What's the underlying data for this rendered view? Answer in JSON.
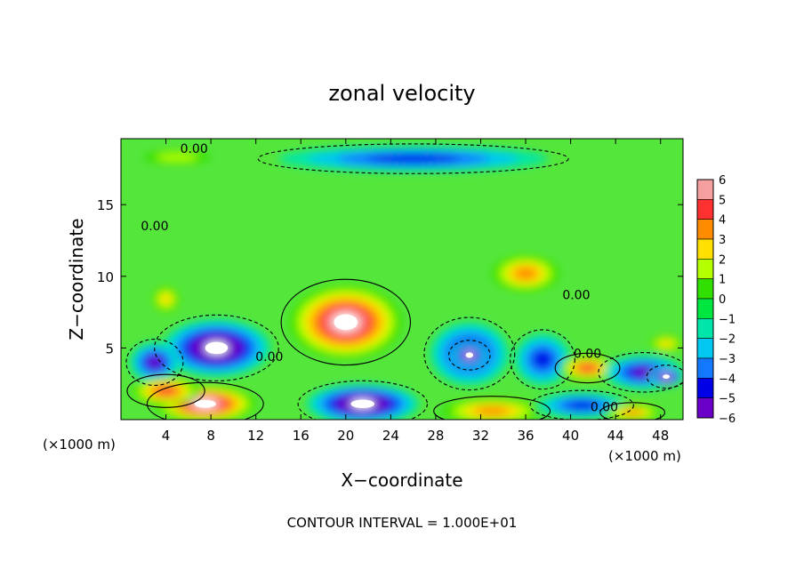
{
  "chart_data": {
    "type": "heatmap",
    "title": "zonal velocity",
    "xlabel": "X−coordinate",
    "ylabel": "Z−coordinate",
    "xunit": "(×1000 m)",
    "footer": "CONTOUR INTERVAL = 1.000E+01",
    "xlim": [
      0,
      50
    ],
    "ylim": [
      0,
      19.6
    ],
    "xticks": [
      4,
      8,
      12,
      16,
      20,
      24,
      28,
      32,
      36,
      40,
      44,
      48
    ],
    "yticks": [
      5,
      10,
      15
    ],
    "colorbar": {
      "range": [
        -6,
        6
      ],
      "ticks": [
        "6",
        "5",
        "4",
        "3",
        "2",
        "1",
        "0",
        "−1",
        "−2",
        "−3",
        "−4",
        "−5",
        "−6"
      ],
      "colors": [
        "#f4a0a0",
        "#ff3030",
        "#ff8c00",
        "#ffe000",
        "#b4ff00",
        "#32e000",
        "#00e640",
        "#00e6aa",
        "#00c8f0",
        "#1478ff",
        "#0000e6",
        "#6a00c8"
      ]
    },
    "contour_labels": [
      {
        "text": "0.00",
        "x": 6.5,
        "y": 18.6
      },
      {
        "text": "0.00",
        "x": 3.0,
        "y": 13.2
      },
      {
        "text": "0.00",
        "x": 40.5,
        "y": 8.4
      },
      {
        "text": "0.00",
        "x": 13.2,
        "y": 4.1
      },
      {
        "text": "0.00",
        "x": 41.5,
        "y": 4.3
      },
      {
        "text": "0.00",
        "x": 43.0,
        "y": 0.6
      }
    ],
    "features": [
      {
        "value": 6.5,
        "x": 20.0,
        "y": 6.8,
        "rx": 5.0,
        "ry": 2.6
      },
      {
        "value": 3.2,
        "x": 36.0,
        "y": 10.2,
        "rx": 3.0,
        "ry": 1.3
      },
      {
        "value": 2.2,
        "x": 4.0,
        "y": 8.4,
        "rx": 1.2,
        "ry": 0.9
      },
      {
        "value": 1.8,
        "x": 5.0,
        "y": 18.3,
        "rx": 3.0,
        "ry": 0.5
      },
      {
        "value": -4.0,
        "x": 26.0,
        "y": 18.2,
        "rx": 12.0,
        "ry": 0.9
      },
      {
        "value": -6.5,
        "x": 8.5,
        "y": 5.0,
        "rx": 4.8,
        "ry": 2.0
      },
      {
        "value": -5.0,
        "x": 3.0,
        "y": 4.0,
        "rx": 2.2,
        "ry": 1.4
      },
      {
        "value": 6.5,
        "x": 7.5,
        "y": 1.1,
        "rx": 4.5,
        "ry": 1.3
      },
      {
        "value": 5.0,
        "x": 4.0,
        "y": 2.0,
        "rx": 3.0,
        "ry": 1.0
      },
      {
        "value": -6.5,
        "x": 21.5,
        "y": 1.1,
        "rx": 5.0,
        "ry": 1.4
      },
      {
        "value": -4.5,
        "x": 31.0,
        "y": 4.6,
        "rx": 3.5,
        "ry": 2.2
      },
      {
        "value": -6.5,
        "x": 31.0,
        "y": 4.5,
        "rx": 1.6,
        "ry": 0.9
      },
      {
        "value": -4.0,
        "x": 37.5,
        "y": 4.2,
        "rx": 2.5,
        "ry": 1.8
      },
      {
        "value": 4.0,
        "x": 33.0,
        "y": 0.6,
        "rx": 4.5,
        "ry": 0.9
      },
      {
        "value": 4.5,
        "x": 41.5,
        "y": 3.6,
        "rx": 2.5,
        "ry": 0.9
      },
      {
        "value": -5.0,
        "x": 46.5,
        "y": 3.3,
        "rx": 3.5,
        "ry": 1.2
      },
      {
        "value": -6.5,
        "x": 48.5,
        "y": 3.0,
        "rx": 1.5,
        "ry": 0.7
      },
      {
        "value": -4.0,
        "x": 41.0,
        "y": 1.0,
        "rx": 4.0,
        "ry": 0.9
      },
      {
        "value": 3.0,
        "x": 48.5,
        "y": 5.3,
        "rx": 1.5,
        "ry": 0.6
      },
      {
        "value": 4.0,
        "x": 45.5,
        "y": 0.5,
        "rx": 2.5,
        "ry": 0.6
      }
    ]
  }
}
